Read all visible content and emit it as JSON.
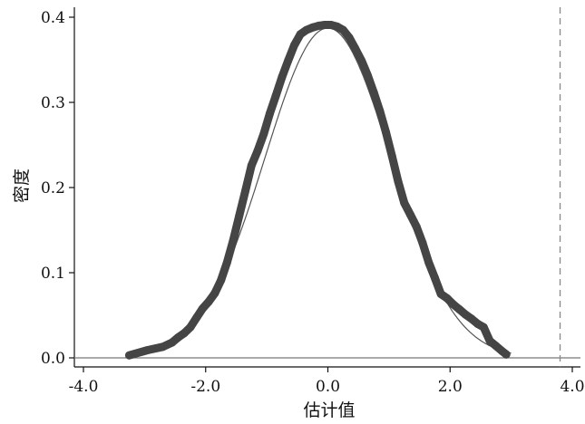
{
  "chart_data": {
    "type": "scatter",
    "title": "",
    "xlabel": "估计值",
    "ylabel": "密度",
    "xlim": [
      -4.0,
      4.0
    ],
    "ylim": [
      0.0,
      0.4
    ],
    "xticks": [
      "-4.0",
      "-2.0",
      "0.0",
      "2.0",
      "4.0"
    ],
    "yticks": [
      "0.0",
      "0.1",
      "0.2",
      "0.3",
      "0.4"
    ],
    "grid": false,
    "legend": "none",
    "reference_line": {
      "x": 3.8,
      "style": "dashed"
    },
    "fitted_curve": {
      "type": "normal-density",
      "mean": 0.0,
      "sd": 1.03
    },
    "series": [
      {
        "x": [
          -3.25,
          -2.95,
          -2.7,
          -2.55,
          -2.45,
          -2.35,
          -2.25,
          -2.15,
          -2.05,
          -1.95,
          -1.85,
          -1.75,
          -1.65,
          -1.55,
          -1.45,
          -1.35,
          -1.25,
          -1.15,
          -1.05,
          -0.95,
          -0.85,
          -0.75,
          -0.65,
          -0.55,
          -0.45,
          -0.35,
          -0.25,
          -0.15,
          -0.05,
          0.05,
          0.15,
          0.25,
          0.35,
          0.45,
          0.55,
          0.65,
          0.75,
          0.85,
          0.95,
          1.05,
          1.15,
          1.25,
          1.35,
          1.45,
          1.55,
          1.65,
          1.75,
          1.85,
          1.95,
          2.05,
          2.15,
          2.25,
          2.35,
          2.45,
          2.55,
          2.65,
          2.75,
          2.85,
          2.92
        ],
        "y": [
          0.003,
          0.009,
          0.013,
          0.018,
          0.024,
          0.029,
          0.036,
          0.047,
          0.058,
          0.066,
          0.076,
          0.091,
          0.112,
          0.138,
          0.167,
          0.196,
          0.226,
          0.243,
          0.263,
          0.287,
          0.308,
          0.33,
          0.349,
          0.367,
          0.38,
          0.385,
          0.388,
          0.39,
          0.391,
          0.391,
          0.389,
          0.385,
          0.376,
          0.363,
          0.349,
          0.332,
          0.312,
          0.29,
          0.265,
          0.237,
          0.207,
          0.182,
          0.168,
          0.154,
          0.135,
          0.112,
          0.094,
          0.075,
          0.07,
          0.063,
          0.057,
          0.051,
          0.046,
          0.04,
          0.036,
          0.02,
          0.014,
          0.008,
          0.004
        ]
      }
    ]
  }
}
